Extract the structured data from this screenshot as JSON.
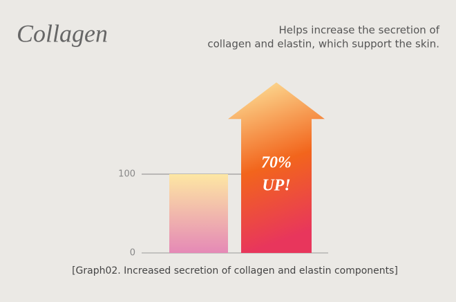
{
  "chart_data": {
    "type": "arrow-bar",
    "title": "Collagen",
    "subtitle": [
      "Helps increase the secretion of",
      "collagen and elastin, which support the skin."
    ],
    "caption": "[Graph02. Increased secretion of collagen and elastin components]",
    "annotations": [
      "70%",
      "UP!"
    ],
    "values": [
      100,
      170
    ],
    "ylim": [
      0,
      225
    ],
    "yticks": [
      0,
      100
    ],
    "grid": true
  }
}
